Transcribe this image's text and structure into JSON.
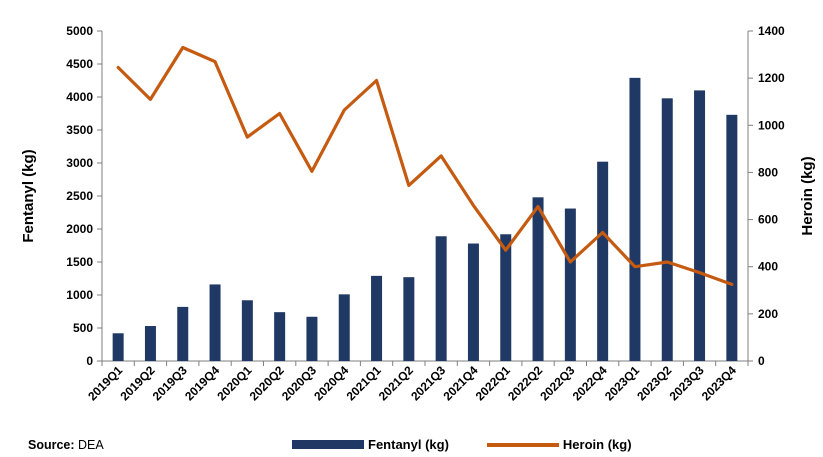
{
  "chart_data": {
    "type": "bar+line",
    "categories": [
      "2019Q1",
      "2019Q2",
      "2019Q3",
      "2019Q4",
      "2020Q1",
      "2020Q2",
      "2020Q3",
      "2020Q4",
      "2021Q1",
      "2021Q2",
      "2021Q3",
      "2021Q4",
      "2022Q1",
      "2022Q2",
      "2022Q3",
      "2022Q4",
      "2023Q1",
      "2023Q2",
      "2023Q3",
      "2023Q4"
    ],
    "series": [
      {
        "name": "Fentanyl (kg)",
        "kind": "bar",
        "axis": "left",
        "color": "#1f3864",
        "values": [
          420,
          530,
          820,
          1160,
          920,
          740,
          670,
          1010,
          1290,
          1270,
          1890,
          1780,
          1920,
          2480,
          2310,
          3020,
          4290,
          3980,
          4100,
          3730
        ]
      },
      {
        "name": "Heroin (kg)",
        "kind": "line",
        "axis": "right",
        "color": "#c55a11",
        "values": [
          1245,
          1110,
          1330,
          1270,
          950,
          1050,
          805,
          1065,
          1190,
          745,
          870,
          660,
          470,
          655,
          420,
          545,
          400,
          420,
          375,
          325
        ]
      }
    ],
    "ylabel": "Fentanyl (kg)",
    "ylabel_right": "Heroin (kg)",
    "ylim": [
      0,
      5000
    ],
    "ylim_right": [
      0,
      1400
    ],
    "yticks": [
      0,
      500,
      1000,
      1500,
      2000,
      2500,
      3000,
      3500,
      4000,
      4500,
      5000
    ],
    "yticks_right": [
      0,
      200,
      400,
      600,
      800,
      1000,
      1200,
      1400
    ],
    "grid": false,
    "legend": "bottom"
  },
  "footer": {
    "source_label": "Source:",
    "source_value": "DEA"
  }
}
